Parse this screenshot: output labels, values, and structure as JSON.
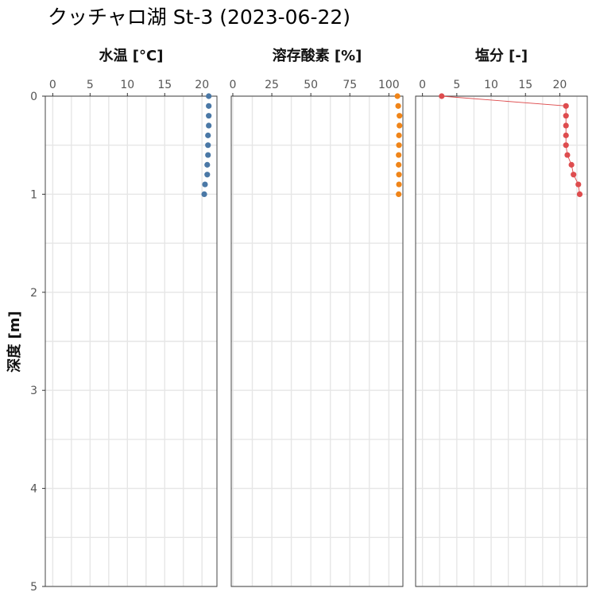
{
  "chart_data": {
    "type": "scatter",
    "title": "クッチャロ湖 St-3 (2023-06-22)",
    "ylabel": "深度 [m]",
    "y_reversed": true,
    "ylim": [
      0,
      5
    ],
    "yticks": [
      0,
      1,
      2,
      3,
      4,
      5
    ],
    "y_tick_labels": [
      "0",
      "1",
      "2",
      "3",
      "4",
      "5"
    ],
    "grid": true,
    "x_axis_position": "top",
    "depth": [
      0,
      0.1,
      0.2,
      0.3,
      0.4,
      0.5,
      0.6,
      0.7,
      0.8,
      0.9,
      1.0
    ],
    "panels": [
      {
        "facet_label": "水温 [°C]",
        "xlim": [
          -1,
          22
        ],
        "xticks": [
          0,
          5,
          10,
          15,
          20
        ],
        "x_tick_labels": [
          "0",
          "5",
          "10",
          "15",
          "20"
        ],
        "color": "#4a78a6",
        "line": false,
        "values": [
          20.9,
          20.9,
          20.9,
          20.9,
          20.8,
          20.8,
          20.8,
          20.7,
          20.7,
          20.4,
          20.3
        ]
      },
      {
        "facet_label": "溶存酸素 [%]",
        "xlim": [
          -1,
          109
        ],
        "xticks": [
          0,
          25,
          50,
          75,
          100
        ],
        "x_tick_labels": [
          "0",
          "25",
          "50",
          "75",
          "100"
        ],
        "color": "#f08519",
        "line": false,
        "values": [
          105.5,
          106,
          106.8,
          106.8,
          106.5,
          106.5,
          106.3,
          106.3,
          106.5,
          106.5,
          106.3
        ]
      },
      {
        "facet_label": "塩分 [-]",
        "xlim": [
          -1,
          24
        ],
        "xticks": [
          0,
          5,
          10,
          15,
          20
        ],
        "x_tick_labels": [
          "0",
          "5",
          "10",
          "15",
          "20"
        ],
        "color": "#de4c4e",
        "line": true,
        "values": [
          2.8,
          20.9,
          20.9,
          20.9,
          20.9,
          20.9,
          21.1,
          21.7,
          22.0,
          22.7,
          22.9
        ]
      }
    ]
  }
}
